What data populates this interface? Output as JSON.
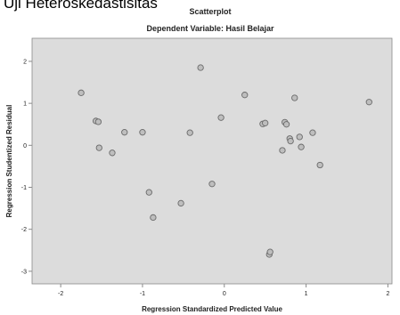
{
  "document": {
    "section_heading": "Uji Heteroskedastisitas"
  },
  "colors": {
    "plot_background": "#dcdcdc",
    "point_fill": "#bebebe",
    "point_stroke": "#6a6a6a",
    "axis": "#8a8a8a",
    "text": "#222222"
  },
  "chart_data": {
    "type": "scatter",
    "title": "Scatterplot",
    "subtitle": "Dependent Variable: Hasil Belajar",
    "xlabel": "Regression Standardized Predicted Value",
    "ylabel": "Regression Studentized Residual",
    "xlim": [
      -2.35,
      2.05
    ],
    "ylim": [
      -3.3,
      2.55
    ],
    "xticks": [
      -2,
      -1,
      0,
      1,
      2
    ],
    "yticks": [
      -3,
      -2,
      -1,
      0,
      1,
      2
    ],
    "xtick_labels": [
      "-2",
      "-1",
      "0",
      "1",
      "2"
    ],
    "ytick_labels": [
      "-3",
      "-2",
      "-1",
      "0",
      "1",
      "2"
    ],
    "grid": false,
    "legend": "none",
    "points": [
      {
        "x": -1.75,
        "y": 1.25
      },
      {
        "x": -1.57,
        "y": 0.58
      },
      {
        "x": -1.54,
        "y": 0.56
      },
      {
        "x": -1.53,
        "y": -0.06
      },
      {
        "x": -1.37,
        "y": -0.18
      },
      {
        "x": -1.22,
        "y": 0.31
      },
      {
        "x": -1.0,
        "y": 0.31
      },
      {
        "x": -0.92,
        "y": -1.12
      },
      {
        "x": -0.87,
        "y": -1.72
      },
      {
        "x": -0.53,
        "y": -1.38
      },
      {
        "x": -0.42,
        "y": 0.3
      },
      {
        "x": -0.29,
        "y": 1.85
      },
      {
        "x": -0.15,
        "y": -0.92
      },
      {
        "x": -0.04,
        "y": 0.66
      },
      {
        "x": 0.25,
        "y": 1.2
      },
      {
        "x": 0.47,
        "y": 0.51
      },
      {
        "x": 0.5,
        "y": 0.53
      },
      {
        "x": 0.55,
        "y": -2.6
      },
      {
        "x": 0.56,
        "y": -2.54
      },
      {
        "x": 0.71,
        "y": -0.12
      },
      {
        "x": 0.74,
        "y": 0.55
      },
      {
        "x": 0.76,
        "y": 0.5
      },
      {
        "x": 0.8,
        "y": 0.16
      },
      {
        "x": 0.81,
        "y": 0.1
      },
      {
        "x": 0.86,
        "y": 1.13
      },
      {
        "x": 0.92,
        "y": 0.2
      },
      {
        "x": 0.94,
        "y": -0.04
      },
      {
        "x": 1.08,
        "y": 0.3
      },
      {
        "x": 1.17,
        "y": -0.47
      },
      {
        "x": 1.77,
        "y": 1.03
      }
    ]
  }
}
